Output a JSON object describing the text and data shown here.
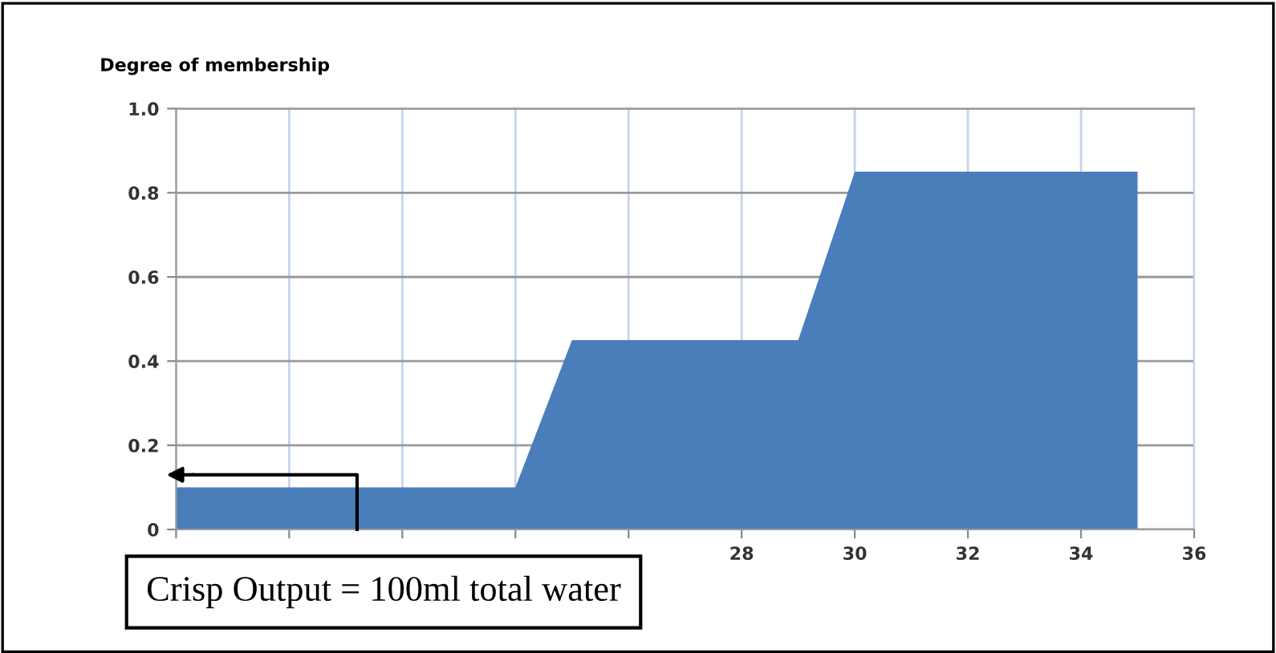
{
  "chart_data": {
    "type": "area",
    "ylabel": "Degree of membership",
    "x": [
      18,
      24,
      25,
      29,
      30,
      35
    ],
    "series": [
      {
        "color": "#4a7eba",
        "values": [
          0.1,
          0.1,
          0.45,
          0.45,
          0.85,
          0.85
        ]
      }
    ],
    "xlim": [
      18,
      36
    ],
    "xticks": [
      {
        "value": 18,
        "label": null
      },
      {
        "value": 20,
        "label": null
      },
      {
        "value": 22,
        "label": null
      },
      {
        "value": 24,
        "label": null
      },
      {
        "value": 26,
        "label": null
      },
      28,
      30,
      32,
      34,
      36
    ],
    "ylim": [
      0,
      1.0
    ],
    "yticks": [
      {
        "value": 0,
        "label": "0"
      },
      0.2,
      0.4,
      0.6,
      0.8,
      {
        "value": 1.0,
        "label": "1.0"
      }
    ],
    "grid": true,
    "annotations": [
      "Crisp Output = 100ml total water"
    ]
  }
}
